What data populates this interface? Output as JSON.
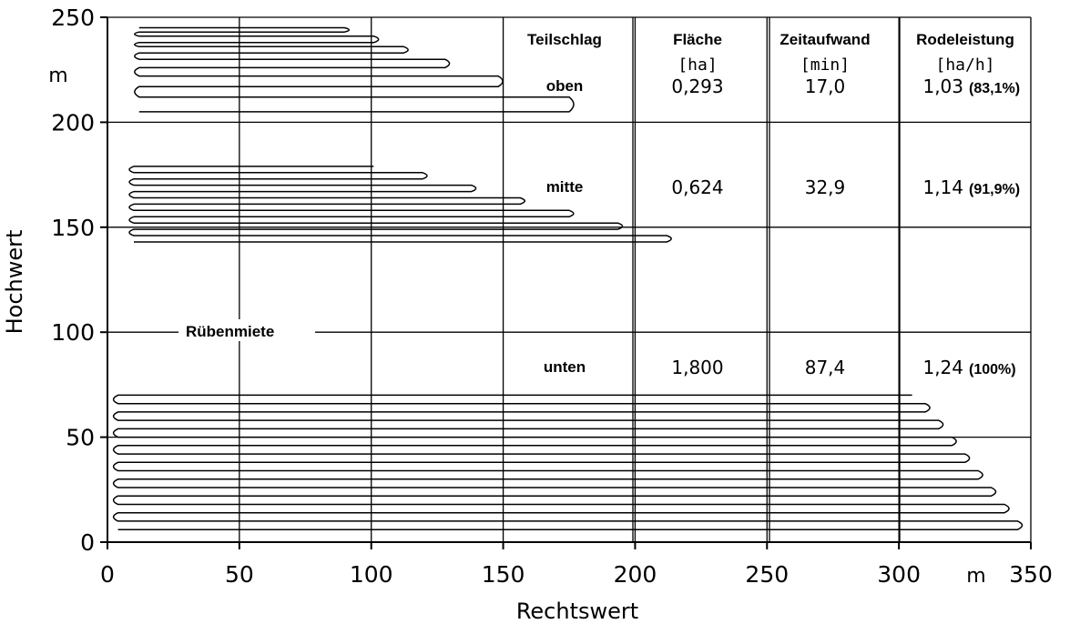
{
  "chart_data": {
    "type": "line",
    "title": "",
    "xlabel": "Rechtswert",
    "ylabel": "Hochwert",
    "x_unit": "m",
    "y_unit": "m",
    "xlim": [
      0,
      350
    ],
    "ylim": [
      0,
      250
    ],
    "x_ticks": [
      "0",
      "50",
      "100",
      "150",
      "200",
      "250",
      "300",
      "350"
    ],
    "y_ticks": [
      "0",
      "50",
      "100",
      "150",
      "200",
      "250"
    ],
    "grid": true,
    "annotation": "Rübenmiete",
    "table": {
      "headers": [
        {
          "label": "Teilschlag",
          "unit": ""
        },
        {
          "label": "Fläche",
          "unit": "[ha]"
        },
        {
          "label": "Zeitaufwand",
          "unit": "[min]"
        },
        {
          "label": "Rodeleistung",
          "unit": "[ha/h]"
        }
      ],
      "rows": [
        {
          "teilschlag": "oben",
          "flaeche": "0,293",
          "zeitaufwand": "17,0",
          "rodeleistung": "1,03",
          "percent": "(83,1%)"
        },
        {
          "teilschlag": "mitte",
          "flaeche": "0,624",
          "zeitaufwand": "32,9",
          "rodeleistung": "1,14",
          "percent": "(91,9%)"
        },
        {
          "teilschlag": "unten",
          "flaeche": "1,800",
          "zeitaufwand": "87,4",
          "rodeleistung": "1,24",
          "percent": "(100%)"
        }
      ]
    },
    "tracks": [
      {
        "name": "oben",
        "y_range": [
          205,
          245
        ],
        "x_start": 12,
        "x_turn": 175,
        "passes": [
          205,
          212,
          217,
          222,
          226,
          230,
          233,
          236,
          238,
          241,
          243,
          245
        ]
      },
      {
        "name": "mitte",
        "y_range": [
          143,
          179
        ],
        "x_start": 10,
        "x_turn": 212,
        "passes": [
          143,
          146,
          149,
          152,
          155,
          158,
          161,
          164,
          167,
          170,
          173,
          176,
          179
        ]
      },
      {
        "name": "unten",
        "y_range": [
          6,
          70
        ],
        "x_start": 4,
        "x_turn": 345,
        "passes": [
          6,
          10,
          14,
          18,
          22,
          26,
          30,
          34,
          38,
          42,
          46,
          50,
          54,
          58,
          62,
          66,
          70
        ]
      }
    ]
  }
}
